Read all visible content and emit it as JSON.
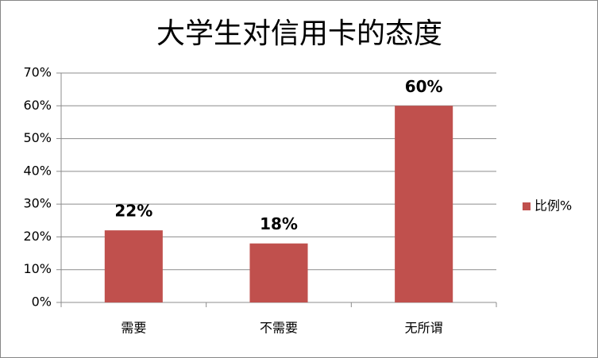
{
  "chart_data": {
    "type": "bar",
    "title": "大学生对信用卡的态度",
    "categories": [
      "需要",
      "不需要",
      "无所谓"
    ],
    "series": [
      {
        "name": "比例%",
        "color": "#c0504d",
        "values": [
          22,
          18,
          60
        ],
        "value_labels": [
          "22%",
          "18%",
          "60%"
        ]
      }
    ],
    "ylim": [
      0,
      70
    ],
    "yticks": [
      {
        "value": 0,
        "label": "0%"
      },
      {
        "value": 10,
        "label": "10%"
      },
      {
        "value": 20,
        "label": "20%"
      },
      {
        "value": 30,
        "label": "30%"
      },
      {
        "value": 40,
        "label": "40%"
      },
      {
        "value": 50,
        "label": "50%"
      },
      {
        "value": 60,
        "label": "60%"
      },
      {
        "value": 70,
        "label": "70%"
      }
    ],
    "grid": true,
    "legend": "right"
  }
}
